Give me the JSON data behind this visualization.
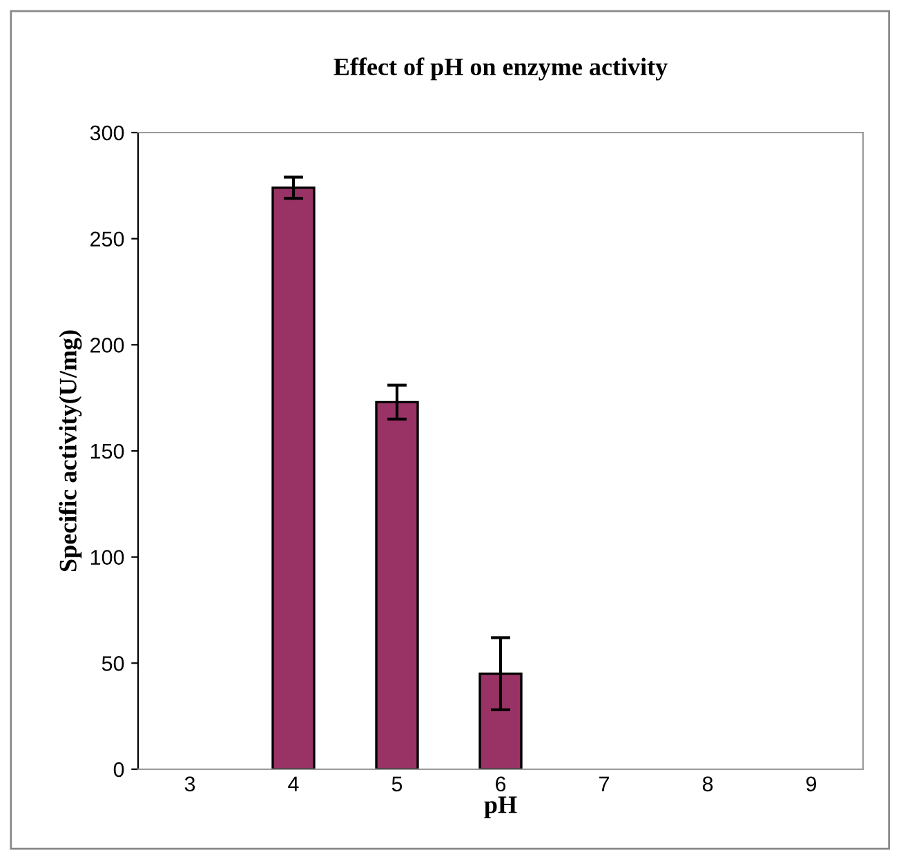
{
  "chart_data": {
    "type": "bar",
    "title": "Effect of pH on enzyme activity",
    "xlabel": "pH",
    "ylabel": "Specific activity(U/mg)",
    "categories": [
      "3",
      "4",
      "5",
      "6",
      "7",
      "8",
      "9"
    ],
    "values": [
      null,
      274,
      173,
      45,
      null,
      null,
      null
    ],
    "errors": [
      null,
      5,
      8,
      17,
      null,
      null,
      null
    ],
    "color": "#993366",
    "ylim": [
      0,
      300
    ],
    "yticks": [
      0,
      50,
      100,
      150,
      200,
      250,
      300
    ],
    "grid": false,
    "legend": false
  }
}
